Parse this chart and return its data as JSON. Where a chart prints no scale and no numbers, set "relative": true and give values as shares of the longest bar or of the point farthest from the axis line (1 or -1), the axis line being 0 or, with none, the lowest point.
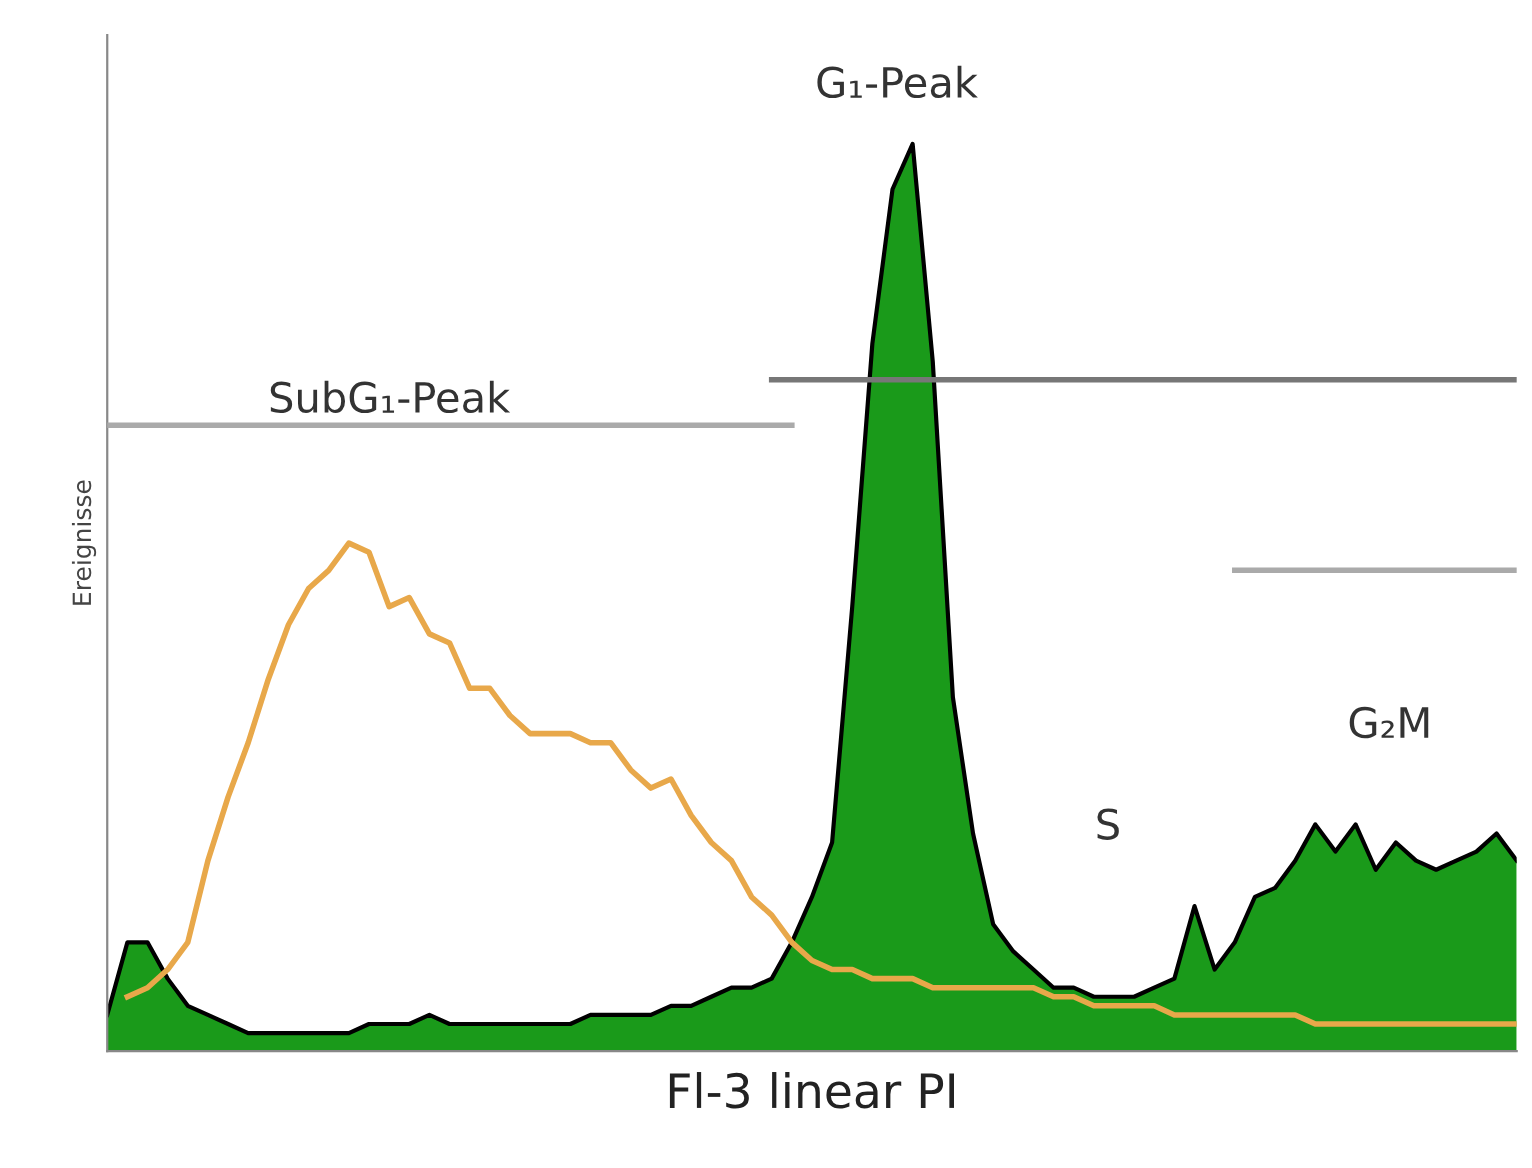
{
  "chart_data": {
    "type": "area",
    "relative": true,
    "xlabel": "Fl-3 linear PI",
    "ylabel": "Ereignisse",
    "categories": [
      null,
      null,
      null,
      null,
      null,
      null,
      null,
      null,
      null,
      null,
      null,
      null,
      null,
      null,
      null,
      null,
      null,
      null,
      null,
      null,
      null,
      null,
      null,
      null,
      null,
      null,
      null,
      null,
      null,
      null,
      null,
      null,
      null,
      null,
      null,
      null,
      null,
      null,
      null,
      null,
      null,
      null,
      null,
      null,
      null,
      null,
      null,
      null,
      null,
      null,
      null,
      null,
      null,
      null,
      null,
      null,
      null,
      null,
      null,
      null,
      null,
      null,
      null,
      null,
      null,
      null,
      null,
      null,
      null,
      null,
      null
    ],
    "series": [
      {
        "color": "#1a9a1a",
        "values": [
          0.04,
          0.12,
          0.12,
          0.08,
          0.05,
          0.04,
          0.03,
          0.02,
          0.02,
          0.02,
          0.02,
          0.02,
          0.02,
          0.03,
          0.03,
          0.03,
          0.04,
          0.03,
          0.03,
          0.03,
          0.03,
          0.03,
          0.03,
          0.03,
          0.04,
          0.04,
          0.04,
          0.04,
          0.05,
          0.05,
          0.06,
          0.07,
          0.07,
          0.08,
          0.12,
          0.17,
          0.23,
          0.49,
          0.78,
          0.95,
          1.0,
          0.76,
          0.39,
          0.24,
          0.14,
          0.11,
          0.09,
          0.07,
          0.07,
          0.06,
          0.06,
          0.06,
          0.07,
          0.08,
          0.16,
          0.09,
          0.12,
          0.17,
          0.18,
          0.21,
          0.25,
          0.22,
          0.25,
          0.2,
          0.23,
          0.21,
          0.2,
          0.21,
          0.22,
          0.24,
          0.21
        ]
      },
      {
        "type": "line",
        "color": "#e8a84a",
        "values": [
          null,
          0.06,
          0.07,
          0.09,
          0.12,
          0.21,
          0.28,
          0.34,
          0.41,
          0.47,
          0.51,
          0.53,
          0.56,
          0.55,
          0.49,
          0.5,
          0.46,
          0.45,
          0.4,
          0.4,
          0.37,
          0.35,
          0.35,
          0.35,
          0.34,
          0.34,
          0.31,
          0.29,
          0.3,
          0.26,
          0.23,
          0.21,
          0.17,
          0.15,
          0.12,
          0.1,
          0.09,
          0.09,
          0.08,
          0.08,
          0.08,
          0.07,
          0.07,
          0.07,
          0.07,
          0.07,
          0.07,
          0.06,
          0.06,
          0.05,
          0.05,
          0.05,
          0.05,
          0.04,
          0.04,
          0.04,
          0.04,
          0.04,
          0.04,
          0.04,
          0.03,
          0.03,
          0.03,
          0.03,
          0.03,
          0.03,
          0.03,
          0.03,
          0.03,
          0.03,
          0.03
        ]
      },
      {
        "type": "line",
        "color": "#aaaaaa",
        "values": [
          0.69,
          0.69,
          0.69,
          0.69,
          0.69,
          0.69,
          0.69,
          0.69,
          0.69,
          0.69,
          0.69,
          0.69,
          0.69,
          0.69,
          0.69,
          0.69,
          0.69,
          0.69,
          0.69,
          0.69,
          0.69,
          0.69,
          0.69,
          0.69,
          0.69,
          0.69,
          0.69,
          0.69,
          0.69,
          0.69,
          0.69,
          0.69,
          0.69,
          0.69,
          0.69,
          null,
          null,
          null,
          null,
          null,
          null,
          null,
          null,
          null,
          null,
          null,
          null,
          null,
          null,
          null,
          null,
          null,
          null,
          null,
          null,
          null,
          null,
          null,
          null,
          null,
          null,
          null,
          null,
          null,
          null,
          null,
          null,
          null,
          null,
          null,
          null
        ]
      },
      {
        "type": "line",
        "color": "#777777",
        "values": [
          null,
          null,
          null,
          null,
          null,
          null,
          null,
          null,
          null,
          null,
          null,
          null,
          null,
          null,
          null,
          null,
          null,
          null,
          null,
          null,
          null,
          null,
          null,
          null,
          null,
          null,
          null,
          null,
          null,
          null,
          null,
          null,
          null,
          0.74,
          0.74,
          0.74,
          0.74,
          0.74,
          0.74,
          0.74,
          0.74,
          0.74,
          0.74,
          0.74,
          0.74,
          0.74,
          0.74,
          0.74,
          0.74,
          0.74,
          0.74,
          0.74,
          0.74,
          0.74,
          0.74,
          0.74,
          0.74,
          0.74,
          0.74,
          0.74,
          0.74,
          0.74,
          0.74,
          0.74,
          0.74,
          0.74,
          0.74,
          0.74,
          0.74,
          0.74,
          0.74
        ]
      },
      {
        "type": "line",
        "color": "#aaaaaa",
        "values": [
          null,
          null,
          null,
          null,
          null,
          null,
          null,
          null,
          null,
          null,
          null,
          null,
          null,
          null,
          null,
          null,
          null,
          null,
          null,
          null,
          null,
          null,
          null,
          null,
          null,
          null,
          null,
          null,
          null,
          null,
          null,
          null,
          null,
          null,
          null,
          null,
          null,
          null,
          null,
          null,
          null,
          null,
          null,
          null,
          null,
          null,
          null,
          null,
          null,
          null,
          null,
          null,
          null,
          null,
          null,
          null,
          0.53,
          0.53,
          0.53,
          0.53,
          0.53,
          0.53,
          0.53,
          0.53,
          0.53,
          0.53,
          0.53,
          0.53,
          0.53,
          0.53,
          0.53
        ]
      }
    ],
    "annotations": [
      "G₁-Peak",
      "SubG₁-Peak",
      "S",
      "G₂M"
    ]
  }
}
